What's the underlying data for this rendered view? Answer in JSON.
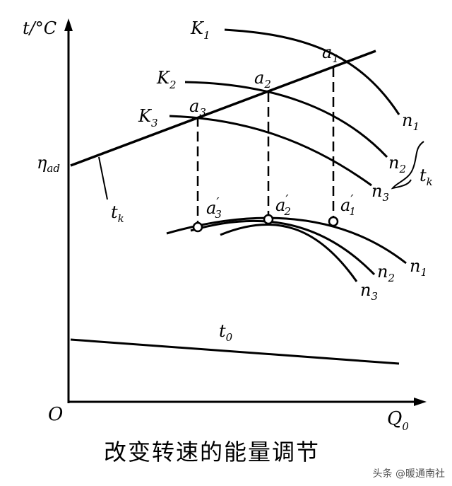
{
  "axes": {
    "y_label": "t/°C",
    "x_label": "Q",
    "x_label_sub": "0",
    "origin": "O"
  },
  "labels": {
    "eta_ad": "η",
    "eta_ad_sub": "ad",
    "tk": "t",
    "tk_sub": "k",
    "t0": "t",
    "t0_sub": "0",
    "K1": "K",
    "K1_sub": "1",
    "K2": "K",
    "K2_sub": "2",
    "K3": "K",
    "K3_sub": "3",
    "a1": "a",
    "a1_sub": "1",
    "a2": "a",
    "a2_sub": "2",
    "a3": "a",
    "a3_sub": "3",
    "a1p": "a",
    "a1p_sub": "1",
    "a2p": "a",
    "a2p_sub": "2",
    "a3p": "a",
    "a3p_sub": "3",
    "n1_upper": "n",
    "n1_upper_sub": "1",
    "n2_upper": "n",
    "n2_upper_sub": "2",
    "n3_upper": "n",
    "n3_upper_sub": "3",
    "n1_lower": "n",
    "n1_lower_sub": "1",
    "n2_lower": "n",
    "n2_lower_sub": "2",
    "n3_lower": "n",
    "n3_lower_sub": "3",
    "tk_brace": "t",
    "tk_brace_sub": "k"
  },
  "caption": "改变转速的能量调节",
  "watermark": "头条 @暖通南社"
}
